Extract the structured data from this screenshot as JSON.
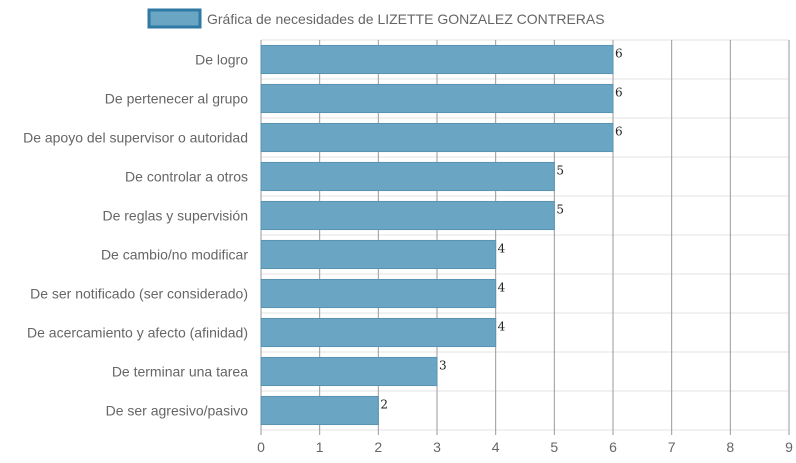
{
  "chart_data": {
    "type": "bar",
    "orientation": "horizontal",
    "legend": {
      "label": "Gráfica de necesidades de LIZETTE GONZALEZ CONTRERAS",
      "placement": "top-center"
    },
    "categories": [
      "De logro",
      "De pertenecer al grupo",
      "De apoyo del supervisor o autoridad",
      "De controlar a otros",
      "De reglas y supervisión",
      "De cambio/no modificar",
      "De ser notificado (ser considerado)",
      "De acercamiento y afecto (afinidad)",
      "De terminar una tarea",
      "De ser agresivo/pasivo"
    ],
    "series": [
      {
        "name": "Gráfica de necesidades de LIZETTE GONZALEZ CONTRERAS",
        "values": [
          6,
          6,
          6,
          5,
          5,
          4,
          4,
          4,
          3,
          2
        ]
      }
    ],
    "xlim": [
      0,
      9
    ],
    "x_ticks": [
      0,
      1,
      2,
      3,
      4,
      5,
      6,
      7,
      8,
      9
    ],
    "grid": true,
    "data_labels": true,
    "colors": {
      "bar_fill": "#6ba5c4",
      "bar_stroke": "#5a93b3",
      "legend_border": "#2f7aa5",
      "grid_major": "#9a9a9a",
      "grid_minor": "#e3e3e3",
      "label_text": "#666666"
    }
  }
}
